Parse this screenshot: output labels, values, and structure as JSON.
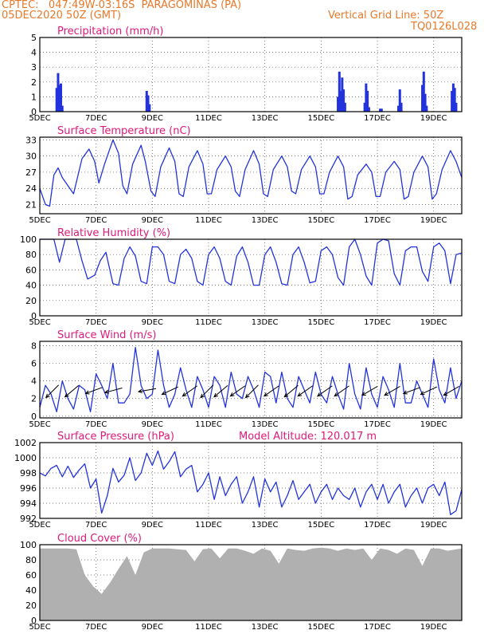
{
  "header": {
    "line1": "CPTEC:   047:49W-03:16S  PARAGOMINAS (PA)",
    "date": "05DEC2020 50Z (GMT)",
    "grid_note": "Vertical Grid Line: 50Z",
    "code": "TQ0126L028"
  },
  "colors": {
    "header": "#e8792a",
    "title": "#e0197a",
    "line": "#2233dd",
    "bar": "#2233dd",
    "cloud": "#b0b0b0",
    "axis": "#000000"
  },
  "x_ticks": [
    "5DEC",
    "7DEC",
    "9DEC",
    "11DEC",
    "13DEC",
    "15DEC",
    "17DEC",
    "19DEC"
  ],
  "x_tick_days": [
    5,
    7,
    9,
    11,
    13,
    15,
    17,
    19
  ],
  "chart_data": [
    {
      "type": "bar",
      "title": "Precipitation (mm/h)",
      "xlim": [
        5,
        20
      ],
      "ylim": [
        0,
        5
      ],
      "yticks": [
        0,
        1,
        2,
        3,
        4,
        5
      ],
      "x": [
        5.6,
        5.65,
        5.7,
        5.75,
        5.8,
        8.8,
        8.85,
        8.9,
        15.6,
        15.65,
        15.7,
        15.75,
        15.8,
        15.85,
        16.55,
        16.6,
        16.65,
        16.7,
        17.1,
        17.15,
        17.75,
        17.8,
        17.85,
        18.6,
        18.65,
        18.7,
        18.75,
        19.65,
        19.7,
        19.75,
        19.8
      ],
      "values": [
        1.6,
        2.6,
        1.8,
        1.9,
        0.4,
        1.4,
        1.1,
        0.5,
        1.0,
        2.7,
        1.4,
        2.3,
        1.5,
        0.6,
        0.6,
        1.9,
        1.4,
        0.3,
        0.2,
        0.2,
        0.4,
        1.5,
        0.6,
        1.8,
        2.7,
        1.2,
        0.4,
        1.4,
        1.9,
        1.6,
        0.6
      ]
    },
    {
      "type": "line",
      "title": "Surface Temperature (nC)",
      "xlim": [
        5,
        20
      ],
      "ylim": [
        19.3,
        33.5
      ],
      "yticks": [
        21,
        24,
        27,
        30,
        33
      ],
      "x": [
        5.0,
        5.2,
        5.35,
        5.5,
        5.65,
        5.8,
        6.2,
        6.5,
        6.75,
        6.95,
        7.1,
        7.3,
        7.6,
        7.8,
        7.95,
        8.1,
        8.3,
        8.6,
        8.75,
        8.95,
        9.1,
        9.3,
        9.6,
        9.8,
        9.95,
        10.1,
        10.3,
        10.6,
        10.8,
        10.95,
        11.1,
        11.3,
        11.6,
        11.8,
        11.95,
        12.1,
        12.3,
        12.6,
        12.8,
        12.95,
        13.1,
        13.3,
        13.6,
        13.8,
        13.95,
        14.1,
        14.3,
        14.6,
        14.8,
        14.95,
        15.1,
        15.3,
        15.6,
        15.8,
        15.95,
        16.1,
        16.3,
        16.6,
        16.8,
        16.95,
        17.1,
        17.3,
        17.6,
        17.8,
        17.95,
        18.1,
        18.3,
        18.6,
        18.8,
        18.95,
        19.1,
        19.3,
        19.6,
        19.8,
        20.0
      ],
      "values": [
        24.0,
        21.0,
        20.7,
        26.5,
        27.8,
        26.0,
        23.0,
        29.5,
        31.3,
        29.0,
        25.0,
        28.5,
        33.0,
        30.5,
        24.5,
        23.0,
        28.5,
        32.0,
        29.0,
        23.5,
        22.5,
        28.0,
        31.5,
        29.0,
        23.0,
        22.5,
        28.0,
        31.0,
        28.5,
        23.0,
        23.0,
        27.5,
        30.0,
        28.0,
        23.5,
        22.5,
        27.5,
        31.0,
        28.5,
        23.0,
        22.5,
        27.5,
        30.0,
        28.0,
        23.5,
        23.0,
        27.5,
        30.0,
        28.0,
        23.0,
        23.0,
        27.0,
        30.0,
        28.0,
        22.0,
        22.5,
        26.5,
        28.5,
        27.0,
        22.5,
        22.5,
        27.0,
        29.0,
        27.5,
        22.0,
        22.5,
        27.0,
        30.0,
        28.0,
        22.0,
        23.0,
        27.5,
        31.0,
        29.0,
        26.0
      ]
    },
    {
      "type": "line",
      "title": "Relative Humidity (%)",
      "xlim": [
        5,
        20
      ],
      "ylim": [
        0,
        100
      ],
      "yticks": [
        0,
        20,
        40,
        60,
        80,
        100
      ],
      "x": [
        5.0,
        5.3,
        5.5,
        5.7,
        5.9,
        6.3,
        6.5,
        6.7,
        6.95,
        7.15,
        7.35,
        7.6,
        7.8,
        8.0,
        8.2,
        8.4,
        8.6,
        8.8,
        9.0,
        9.2,
        9.4,
        9.6,
        9.8,
        10.0,
        10.2,
        10.4,
        10.6,
        10.8,
        11.0,
        11.2,
        11.4,
        11.6,
        11.8,
        12.0,
        12.2,
        12.4,
        12.6,
        12.8,
        13.0,
        13.2,
        13.4,
        13.6,
        13.8,
        14.0,
        14.2,
        14.4,
        14.6,
        14.8,
        15.0,
        15.2,
        15.4,
        15.6,
        15.8,
        16.0,
        16.2,
        16.4,
        16.6,
        16.8,
        17.0,
        17.2,
        17.4,
        17.6,
        17.8,
        18.0,
        18.2,
        18.4,
        18.6,
        18.8,
        19.0,
        19.2,
        19.4,
        19.6,
        19.8,
        20.0
      ],
      "values": [
        100,
        100,
        100,
        70,
        100,
        100,
        72,
        48,
        53,
        72,
        83,
        42,
        40,
        75,
        90,
        78,
        45,
        42,
        90,
        90,
        80,
        45,
        42,
        80,
        87,
        75,
        45,
        40,
        80,
        90,
        75,
        45,
        40,
        78,
        90,
        70,
        40,
        40,
        80,
        90,
        70,
        42,
        40,
        80,
        90,
        70,
        43,
        45,
        85,
        90,
        80,
        50,
        40,
        90,
        100,
        80,
        52,
        40,
        95,
        100,
        98,
        55,
        40,
        85,
        90,
        90,
        58,
        45,
        90,
        95,
        85,
        42,
        80,
        82
      ]
    },
    {
      "type": "line",
      "title": "Surface Wind (m/s)",
      "xlim": [
        5,
        20
      ],
      "ylim": [
        -0.2,
        8.5
      ],
      "yticks": [
        0,
        2,
        4,
        6,
        8
      ],
      "x": [
        5.0,
        5.2,
        5.4,
        5.6,
        5.8,
        6.0,
        6.2,
        6.4,
        6.6,
        6.8,
        7.0,
        7.2,
        7.4,
        7.6,
        7.8,
        8.0,
        8.2,
        8.4,
        8.6,
        8.8,
        9.0,
        9.2,
        9.4,
        9.6,
        9.8,
        10.0,
        10.2,
        10.4,
        10.6,
        10.8,
        11.0,
        11.2,
        11.4,
        11.6,
        11.8,
        12.0,
        12.2,
        12.4,
        12.6,
        12.8,
        13.0,
        13.2,
        13.4,
        13.6,
        13.8,
        14.0,
        14.2,
        14.4,
        14.6,
        14.8,
        15.0,
        15.2,
        15.4,
        15.6,
        15.8,
        16.0,
        16.2,
        16.4,
        16.6,
        16.8,
        17.0,
        17.2,
        17.4,
        17.6,
        17.8,
        18.0,
        18.2,
        18.4,
        18.6,
        18.8,
        19.0,
        19.2,
        19.4,
        19.6,
        19.8,
        20.0
      ],
      "values": [
        1.0,
        3.5,
        2.5,
        0.5,
        4.0,
        2.0,
        0.8,
        3.5,
        3.0,
        0.5,
        4.8,
        3.5,
        2.0,
        6.0,
        1.5,
        1.5,
        2.5,
        7.8,
        3.5,
        2.0,
        2.5,
        7.5,
        3.5,
        1.0,
        2.5,
        5.5,
        3.0,
        1.0,
        4.5,
        3.0,
        1.0,
        4.5,
        3.5,
        1.0,
        5.0,
        2.5,
        2.0,
        4.5,
        3.0,
        1.0,
        5.0,
        4.5,
        1.5,
        5.0,
        2.0,
        1.0,
        4.5,
        3.0,
        1.5,
        5.0,
        2.5,
        1.5,
        4.5,
        2.5,
        0.8,
        6.0,
        2.5,
        0.8,
        5.5,
        2.5,
        1.0,
        4.5,
        3.0,
        1.0,
        6.0,
        1.5,
        1.5,
        4.0,
        2.5,
        1.0,
        6.5,
        3.0,
        1.5,
        5.5,
        2.0,
        4.0
      ],
      "barbs_x": [
        5.5,
        6.2,
        7.0,
        7.7,
        8.9,
        9.7,
        10.4,
        11.0,
        11.5,
        12.1,
        12.6,
        13.3,
        14.0,
        14.5,
        15.2,
        15.8,
        16.8,
        17.6,
        18.3,
        18.9,
        19.7
      ],
      "barbs_angle": [
        225,
        220,
        200,
        195,
        190,
        205,
        215,
        225,
        220,
        215,
        225,
        215,
        220,
        215,
        215,
        215,
        210,
        210,
        200,
        205,
        210
      ]
    },
    {
      "type": "line",
      "title": "Surface Pressure (hPa)",
      "annotation": "Model Altitude: 120.017 m",
      "xlim": [
        5,
        20
      ],
      "ylim": [
        992,
        1002
      ],
      "yticks": [
        992,
        994,
        996,
        998,
        1000,
        1002
      ],
      "x": [
        5.0,
        5.2,
        5.4,
        5.6,
        5.8,
        6.0,
        6.2,
        6.4,
        6.6,
        6.8,
        7.0,
        7.2,
        7.4,
        7.6,
        7.8,
        8.0,
        8.2,
        8.4,
        8.6,
        8.8,
        9.0,
        9.2,
        9.4,
        9.6,
        9.8,
        10.0,
        10.2,
        10.4,
        10.6,
        10.8,
        11.0,
        11.2,
        11.4,
        11.6,
        11.8,
        12.0,
        12.2,
        12.4,
        12.6,
        12.8,
        13.0,
        13.2,
        13.4,
        13.6,
        13.8,
        14.0,
        14.2,
        14.4,
        14.6,
        14.8,
        15.0,
        15.2,
        15.4,
        15.6,
        15.8,
        16.0,
        16.2,
        16.4,
        16.6,
        16.8,
        17.0,
        17.2,
        17.4,
        17.6,
        17.8,
        18.0,
        18.2,
        18.4,
        18.6,
        18.8,
        19.0,
        19.2,
        19.4,
        19.6,
        19.8,
        20.0
      ],
      "values": [
        998.0,
        997.6,
        998.6,
        999.0,
        997.5,
        998.9,
        997.4,
        998.4,
        999.2,
        996.0,
        997.2,
        992.7,
        995.0,
        998.6,
        996.8,
        997.7,
        1000.0,
        997.0,
        998.0,
        1000.6,
        999.0,
        1000.9,
        998.5,
        999.5,
        1000.8,
        997.5,
        998.5,
        999.0,
        995.5,
        996.5,
        998.0,
        994.5,
        997.5,
        995.0,
        996.5,
        997.5,
        994.0,
        995.5,
        997.5,
        993.5,
        997.2,
        995.5,
        996.8,
        993.5,
        995.0,
        997.0,
        994.5,
        995.5,
        996.5,
        994.0,
        995.5,
        996.5,
        994.5,
        996.0,
        995.0,
        994.5,
        996.0,
        993.5,
        995.5,
        996.5,
        994.5,
        996.5,
        994.0,
        995.5,
        996.5,
        993.5,
        995.0,
        996.0,
        994.0,
        996.0,
        996.5,
        995.0,
        996.8,
        992.5,
        993.0,
        995.8
      ]
    },
    {
      "type": "area",
      "title": "Cloud Cover (%)",
      "xlim": [
        5,
        20
      ],
      "ylim": [
        0,
        100
      ],
      "yticks": [
        0,
        20,
        40,
        60,
        80,
        100
      ],
      "x": [
        5.0,
        5.5,
        6.0,
        6.3,
        6.6,
        6.9,
        7.2,
        7.5,
        7.8,
        8.1,
        8.4,
        8.7,
        9.0,
        9.3,
        9.6,
        9.9,
        10.2,
        10.5,
        10.8,
        11.1,
        11.4,
        11.7,
        12.0,
        12.3,
        12.6,
        12.9,
        13.2,
        13.5,
        13.8,
        14.1,
        14.4,
        14.7,
        15.0,
        15.3,
        15.6,
        15.9,
        16.2,
        16.5,
        16.8,
        17.1,
        17.4,
        17.7,
        18.0,
        18.3,
        18.6,
        18.9,
        19.2,
        19.5,
        19.8,
        20.0
      ],
      "values": [
        95,
        95,
        95,
        94,
        60,
        45,
        35,
        50,
        68,
        85,
        60,
        90,
        95,
        95,
        95,
        94,
        93,
        78,
        94,
        95,
        82,
        95,
        95,
        92,
        88,
        95,
        92,
        75,
        95,
        93,
        92,
        95,
        96,
        95,
        92,
        95,
        93,
        95,
        80,
        95,
        93,
        88,
        95,
        93,
        72,
        95,
        95,
        92,
        94,
        95
      ]
    }
  ]
}
